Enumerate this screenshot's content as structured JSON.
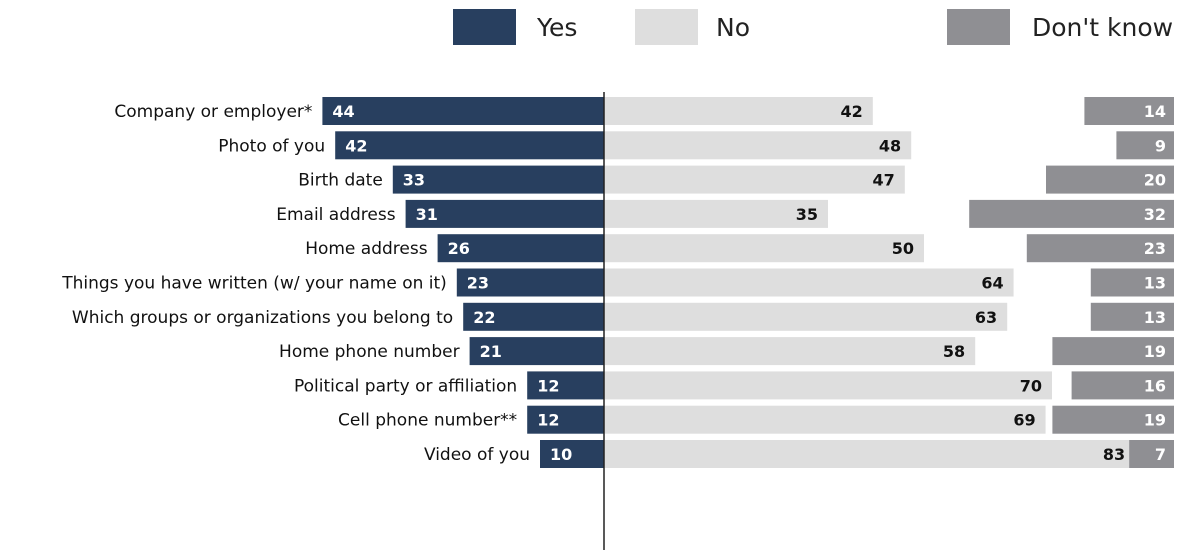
{
  "colors": {
    "yes": "#283f5f",
    "no": "#dedede",
    "dont_know": "#8f8f93"
  },
  "legend": [
    {
      "label": "Yes",
      "color": "#283f5f"
    },
    {
      "label": "No",
      "color": "#dedede"
    },
    {
      "label": "Don't know",
      "color": "#8f8f93"
    }
  ],
  "chart_data": {
    "type": "bar",
    "orientation": "horizontal",
    "stacking": "diverging",
    "categories": [
      "Company or employer*",
      "Photo of you",
      "Birth date",
      "Email address",
      "Home address",
      "Things you have written  (w/ your name on it)",
      "Which groups or organizations you belong to",
      "Home phone number",
      "Political party or affiliation",
      "Cell phone number**",
      "Video of you"
    ],
    "series": [
      {
        "name": "Yes",
        "values": [
          44,
          42,
          33,
          31,
          26,
          23,
          22,
          21,
          12,
          12,
          10
        ]
      },
      {
        "name": "No",
        "values": [
          42,
          48,
          47,
          35,
          50,
          64,
          63,
          58,
          70,
          69,
          83
        ]
      },
      {
        "name": "Don't know",
        "values": [
          14,
          9,
          20,
          32,
          23,
          13,
          13,
          19,
          16,
          19,
          7
        ]
      }
    ],
    "legend_position": "top",
    "grid": false
  }
}
